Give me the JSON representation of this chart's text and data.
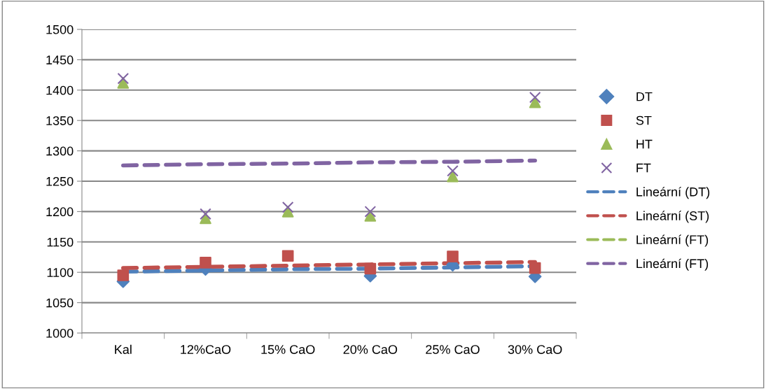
{
  "chart_data": {
    "type": "scatter",
    "categories": [
      "Kal",
      "12%CaO",
      "15% CaO",
      "20% CaO",
      "25% CaO",
      "30% CaO"
    ],
    "ylim": [
      1000,
      1500
    ],
    "yticks": [
      1000,
      1050,
      1100,
      1150,
      1200,
      1250,
      1300,
      1350,
      1400,
      1450,
      1500
    ],
    "grid": "y",
    "legend": "right",
    "series": [
      {
        "name": "Lineární (DT)",
        "type": "line",
        "color": "#4f81bd",
        "line_style": "dashed",
        "marker": "none",
        "values": [
          1101,
          1103,
          1105,
          1106,
          1108,
          1110
        ]
      },
      {
        "name": "Lineární (ST)",
        "type": "line",
        "color": "#c0504d",
        "line_style": "dashed",
        "marker": "none",
        "values": [
          1107,
          1109,
          1111,
          1113,
          1115,
          1117
        ]
      },
      {
        "name": "Lineární (FT)",
        "type": "line",
        "color": "#9bbb59",
        "line_style": "dashed",
        "marker": "none",
        "values": [
          null,
          null,
          null,
          null,
          null,
          null
        ]
      },
      {
        "name": "Lineární (FT)",
        "type": "line",
        "color": "#8064a2",
        "line_style": "dashed",
        "marker": "none",
        "values": [
          1276,
          1278,
          1279,
          1281,
          1282,
          1284
        ]
      },
      {
        "name": "DT",
        "color": "#4f81bd",
        "marker": "diamond",
        "values": [
          1085,
          1105,
          null,
          1094,
          1112,
          1093
        ]
      },
      {
        "name": "ST",
        "color": "#c0504d",
        "marker": "square",
        "values": [
          1095,
          1116,
          1127,
          1106,
          1126,
          1107
        ]
      },
      {
        "name": "HT",
        "color": "#9bbb59",
        "marker": "triangle",
        "values": [
          1412,
          1189,
          1200,
          1193,
          1258,
          1380
        ]
      },
      {
        "name": "FT",
        "color": "#8064a2",
        "marker": "cross",
        "values": [
          1419,
          1196,
          1207,
          1200,
          1267,
          1388
        ]
      }
    ]
  }
}
